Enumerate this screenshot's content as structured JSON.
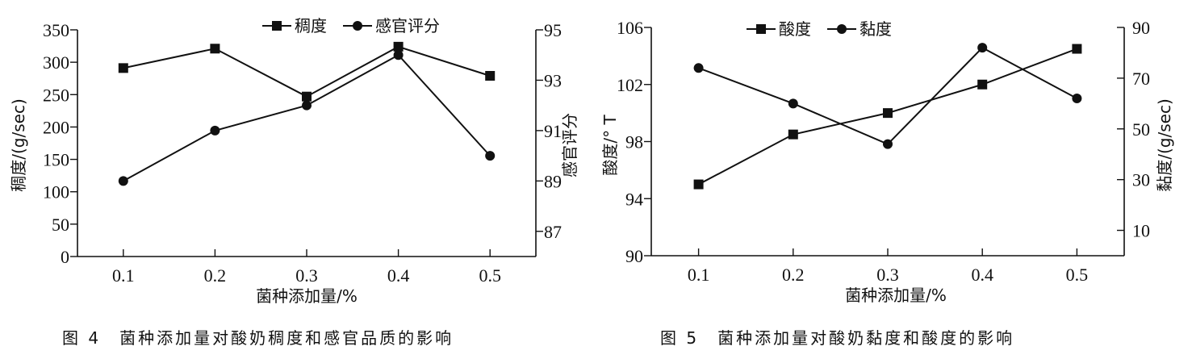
{
  "chart_data": [
    {
      "type": "line",
      "caption": "图 4　菌种添加量对酸奶稠度和感官品质的影响",
      "xlabel": "菌种添加量/%",
      "ylabel": "稠度/(g/sec)",
      "y2label": "感官评分",
      "x": [
        0.1,
        0.2,
        0.3,
        0.4,
        0.5
      ],
      "x_tick_labels": [
        "0.1",
        "0.2",
        "0.3",
        "0.4",
        "0.5"
      ],
      "xlim": [
        0.05,
        0.55
      ],
      "ylim": [
        0,
        350
      ],
      "y_ticks": [
        0,
        50,
        100,
        150,
        200,
        250,
        300,
        350
      ],
      "y2lim": [
        86,
        95
      ],
      "y2_ticks": [
        87,
        89,
        91,
        93,
        95
      ],
      "grid": false,
      "legend_position": "top",
      "series": [
        {
          "name": "稠度",
          "axis": "left",
          "marker": "square",
          "values": [
            291,
            321,
            247,
            324,
            279
          ]
        },
        {
          "name": "感官评分",
          "axis": "right",
          "marker": "circle",
          "values": [
            89.0,
            91.0,
            92.0,
            94.0,
            90.0
          ]
        }
      ],
      "color": "#111111"
    },
    {
      "type": "line",
      "caption": "图 5　菌种添加量对酸奶黏度和酸度的影响",
      "xlabel": "菌种添加量/%",
      "ylabel": "酸度/° T",
      "y2label": "黏度/(g/sec)",
      "x": [
        0.1,
        0.2,
        0.3,
        0.4,
        0.5
      ],
      "x_tick_labels": [
        "0.1",
        "0.2",
        "0.3",
        "0.4",
        "0.5"
      ],
      "xlim": [
        0.05,
        0.55
      ],
      "ylim": [
        90,
        106
      ],
      "y_ticks": [
        90,
        94,
        98,
        102,
        106
      ],
      "y2lim": [
        0,
        90
      ],
      "y2_ticks": [
        10,
        30,
        50,
        70,
        90
      ],
      "grid": false,
      "legend_position": "top",
      "series": [
        {
          "name": "酸度",
          "axis": "left",
          "marker": "square",
          "values": [
            95.0,
            98.5,
            100.0,
            102.0,
            104.5
          ]
        },
        {
          "name": "黏度",
          "axis": "right",
          "marker": "circle",
          "values": [
            74,
            60,
            44,
            82,
            62
          ]
        }
      ],
      "color": "#111111"
    }
  ]
}
